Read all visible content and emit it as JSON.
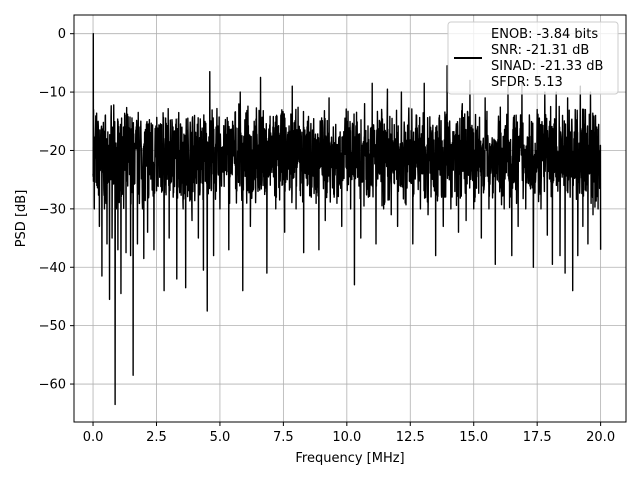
{
  "chart_data": {
    "type": "line",
    "title": "",
    "xlabel": "Frequency [MHz]",
    "ylabel": "PSD [dB]",
    "xlim": [
      -0.75,
      21.0
    ],
    "ylim": [
      -66.5,
      3.2
    ],
    "x_ticks": [
      0.0,
      2.5,
      5.0,
      7.5,
      10.0,
      12.5,
      15.0,
      17.5,
      20.0
    ],
    "x_tick_labels": [
      "0.0",
      "2.5",
      "5.0",
      "7.5",
      "10.0",
      "12.5",
      "15.0",
      "17.5",
      "20.0"
    ],
    "y_ticks": [
      0,
      -10,
      -20,
      -30,
      -40,
      -50,
      -60
    ],
    "y_tick_labels": [
      "0",
      "−10",
      "−20",
      "−30",
      "−40",
      "−50",
      "−60"
    ],
    "grid": true,
    "legend_position": "top-right",
    "legend_lines": [
      "ENOB: -3.84 bits",
      "SNR: -21.31 dB",
      "SINAD: -21.33 dB",
      "SFDR: 5.13"
    ],
    "series": [
      {
        "color": "#000000",
        "x_range": [
          0.0,
          20.0
        ],
        "noise_envelope_top": -15,
        "noise_envelope_bottom": -27,
        "points": [
          [
            0.0,
            -24
          ],
          [
            0.01,
            0.0
          ],
          [
            0.02,
            -13
          ],
          [
            0.05,
            -30
          ],
          [
            0.1,
            -17
          ],
          [
            0.15,
            -26
          ],
          [
            0.2,
            -15
          ],
          [
            0.25,
            -33
          ],
          [
            0.3,
            -22
          ],
          [
            0.35,
            -41.5
          ],
          [
            0.4,
            -18
          ],
          [
            0.45,
            -30
          ],
          [
            0.55,
            -36
          ],
          [
            0.6,
            -20
          ],
          [
            0.65,
            -45.5
          ],
          [
            0.7,
            -25
          ],
          [
            0.75,
            -35
          ],
          [
            0.8,
            -18
          ],
          [
            0.87,
            -63.5
          ],
          [
            0.92,
            -30
          ],
          [
            0.98,
            -37
          ],
          [
            1.05,
            -20
          ],
          [
            1.1,
            -44.5
          ],
          [
            1.2,
            -16
          ],
          [
            1.3,
            -37.5
          ],
          [
            1.4,
            -22
          ],
          [
            1.48,
            -38
          ],
          [
            1.52,
            -20
          ],
          [
            1.58,
            -58.5
          ],
          [
            1.63,
            -25
          ],
          [
            1.75,
            -36
          ],
          [
            1.85,
            -16
          ],
          [
            1.95,
            -30
          ],
          [
            2.0,
            -38.5
          ],
          [
            2.05,
            -18
          ],
          [
            2.15,
            -34
          ],
          [
            2.3,
            -20
          ],
          [
            2.4,
            -37
          ],
          [
            2.55,
            -26
          ],
          [
            2.65,
            -17
          ],
          [
            2.8,
            -44
          ],
          [
            2.9,
            -20
          ],
          [
            3.0,
            -35
          ],
          [
            3.15,
            -16
          ],
          [
            3.3,
            -42
          ],
          [
            3.4,
            -20
          ],
          [
            3.55,
            -30
          ],
          [
            3.65,
            -43.5
          ],
          [
            3.75,
            -18
          ],
          [
            3.9,
            -32
          ],
          [
            4.0,
            -14
          ],
          [
            4.15,
            -35
          ],
          [
            4.25,
            -21
          ],
          [
            4.35,
            -40.5
          ],
          [
            4.45,
            -18
          ],
          [
            4.5,
            -47.5
          ],
          [
            4.55,
            -22
          ],
          [
            4.6,
            -6.5
          ],
          [
            4.65,
            -24
          ],
          [
            4.75,
            -38
          ],
          [
            4.85,
            -16
          ],
          [
            5.0,
            -30
          ],
          [
            5.2,
            -18
          ],
          [
            5.35,
            -37
          ],
          [
            5.5,
            -15
          ],
          [
            5.65,
            -29
          ],
          [
            5.8,
            -10
          ],
          [
            5.9,
            -44
          ],
          [
            6.0,
            -20
          ],
          [
            6.2,
            -33
          ],
          [
            6.35,
            -15
          ],
          [
            6.5,
            -27
          ],
          [
            6.6,
            -7.5
          ],
          [
            6.7,
            -26
          ],
          [
            6.85,
            -41
          ],
          [
            7.0,
            -17
          ],
          [
            7.2,
            -30
          ],
          [
            7.4,
            -14
          ],
          [
            7.55,
            -34
          ],
          [
            7.7,
            -20
          ],
          [
            7.85,
            -9
          ],
          [
            8.0,
            -30
          ],
          [
            8.15,
            -18
          ],
          [
            8.3,
            -37.5
          ],
          [
            8.45,
            -15
          ],
          [
            8.6,
            -28
          ],
          [
            8.75,
            -20
          ],
          [
            8.9,
            -37
          ],
          [
            9.0,
            -17
          ],
          [
            9.15,
            -32
          ],
          [
            9.3,
            -11
          ],
          [
            9.5,
            -28
          ],
          [
            9.65,
            -19
          ],
          [
            9.8,
            -33
          ],
          [
            10.0,
            -15
          ],
          [
            10.15,
            -30
          ],
          [
            10.3,
            -43
          ],
          [
            10.4,
            -18
          ],
          [
            10.55,
            -35
          ],
          [
            10.7,
            -12
          ],
          [
            10.85,
            -28
          ],
          [
            11.0,
            -8.5
          ],
          [
            11.15,
            -36
          ],
          [
            11.3,
            -15
          ],
          [
            11.45,
            -30
          ],
          [
            11.6,
            -9.5
          ],
          [
            11.75,
            -31
          ],
          [
            11.9,
            -18
          ],
          [
            12.0,
            -33
          ],
          [
            12.15,
            -10
          ],
          [
            12.3,
            -29
          ],
          [
            12.45,
            -16
          ],
          [
            12.6,
            -36
          ],
          [
            12.75,
            -14
          ],
          [
            12.9,
            -30
          ],
          [
            13.05,
            -8.5
          ],
          [
            13.2,
            -31
          ],
          [
            13.35,
            -17
          ],
          [
            13.5,
            -38
          ],
          [
            13.65,
            -14
          ],
          [
            13.8,
            -33
          ],
          [
            13.95,
            -5.5
          ],
          [
            14.1,
            -30
          ],
          [
            14.25,
            -18
          ],
          [
            14.4,
            -34
          ],
          [
            14.55,
            -12
          ],
          [
            14.7,
            -32
          ],
          [
            14.85,
            -8
          ],
          [
            15.0,
            -30
          ],
          [
            15.15,
            -17
          ],
          [
            15.3,
            -35
          ],
          [
            15.45,
            -11
          ],
          [
            15.6,
            -30
          ],
          [
            15.75,
            -20
          ],
          [
            15.85,
            -39.5
          ],
          [
            16.0,
            -15
          ],
          [
            16.2,
            -30
          ],
          [
            16.35,
            -9
          ],
          [
            16.5,
            -38
          ],
          [
            16.6,
            -14
          ],
          [
            16.75,
            -33
          ],
          [
            16.9,
            -8.5
          ],
          [
            17.05,
            -30
          ],
          [
            17.2,
            -15
          ],
          [
            17.35,
            -40
          ],
          [
            17.5,
            -13
          ],
          [
            17.65,
            -30
          ],
          [
            17.8,
            -10
          ],
          [
            17.9,
            -34.5
          ],
          [
            18.0,
            -15
          ],
          [
            18.1,
            -39.5
          ],
          [
            18.25,
            -10
          ],
          [
            18.4,
            -38
          ],
          [
            18.5,
            -14
          ],
          [
            18.6,
            -41
          ],
          [
            18.7,
            -11
          ],
          [
            18.8,
            -28
          ],
          [
            18.9,
            -44
          ],
          [
            19.0,
            -13
          ],
          [
            19.1,
            -38
          ],
          [
            19.2,
            -9
          ],
          [
            19.3,
            -33
          ],
          [
            19.4,
            -13
          ],
          [
            19.5,
            -36
          ],
          [
            19.6,
            -10
          ],
          [
            19.7,
            -31
          ],
          [
            19.8,
            -14
          ],
          [
            19.9,
            -30
          ],
          [
            20.0,
            -37
          ]
        ]
      }
    ]
  }
}
